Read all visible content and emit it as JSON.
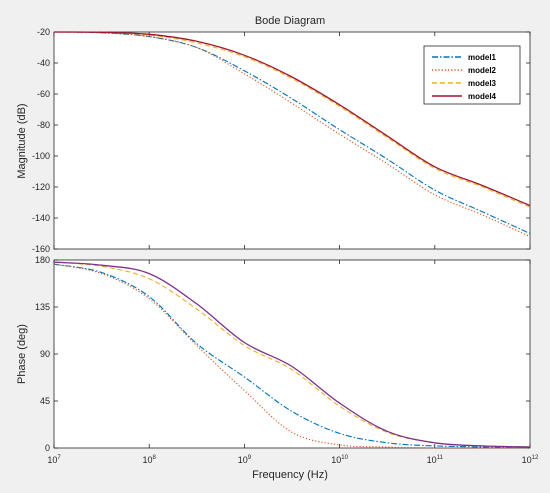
{
  "chart_data": [
    {
      "type": "line",
      "title": "Bode Diagram",
      "xlabel": "Frequency  (Hz)",
      "ylabel": "Magnitude (dB)",
      "x_scale": "log",
      "xlim": [
        10000000,
        1000000000000
      ],
      "ylim": [
        -160,
        -20
      ],
      "yticks": [
        "-20",
        "-40",
        "-60",
        "-80",
        "-100",
        "-120",
        "-140",
        "-160"
      ],
      "grid": false,
      "legend": "top-right",
      "x": [
        10000000,
        31600000,
        100000000,
        316000000,
        1000000000,
        3160000000,
        10000000000,
        31600000000,
        100000000000,
        316000000000,
        1000000000000
      ],
      "series": [
        {
          "name": "model1",
          "color": "#0072BD",
          "dash": "dashdot",
          "values": [
            -20,
            -20.5,
            -23,
            -30,
            -45,
            -63,
            -83,
            -102,
            -122,
            -136,
            -150
          ]
        },
        {
          "name": "model2",
          "color": "#D95319",
          "dash": "dotted",
          "values": [
            -20,
            -20.5,
            -23,
            -30,
            -47,
            -66,
            -86,
            -105,
            -125,
            -138,
            -152
          ]
        },
        {
          "name": "model3",
          "color": "#EDB120",
          "dash": "dashed",
          "values": [
            -20,
            -20.2,
            -22,
            -27,
            -36,
            -50,
            -68,
            -88,
            -108,
            -120,
            -133
          ]
        },
        {
          "name": "model4",
          "color": "#A2142F",
          "dash": "solid",
          "values": [
            -20,
            -20.2,
            -21.5,
            -26,
            -35,
            -49,
            -67,
            -87,
            -107,
            -119,
            -132
          ]
        }
      ]
    },
    {
      "type": "line",
      "xlabel": "Frequency  (Hz)",
      "ylabel": "Phase (deg)",
      "x_scale": "log",
      "xlim": [
        10000000,
        1000000000000
      ],
      "ylim": [
        0,
        180
      ],
      "yticks": [
        "0",
        "45",
        "90",
        "135",
        "180"
      ],
      "xticks_base": "10",
      "xticks_exp": [
        "7",
        "8",
        "9",
        "10",
        "11",
        "12"
      ],
      "grid": false,
      "x": [
        10000000,
        31600000,
        100000000,
        316000000,
        1000000000,
        3160000000,
        10000000000,
        31600000000,
        100000000000,
        316000000000,
        1000000000000
      ],
      "series": [
        {
          "name": "model1",
          "color": "#0072BD",
          "dash": "dashdot",
          "values": [
            176,
            168,
            145,
            100,
            68,
            35,
            14,
            5,
            2,
            1,
            0
          ]
        },
        {
          "name": "model2",
          "color": "#D95319",
          "dash": "dotted",
          "values": [
            176,
            167,
            143,
            98,
            55,
            15,
            3,
            1,
            0,
            0,
            0
          ]
        },
        {
          "name": "model3",
          "color": "#EDB120",
          "dash": "dashed",
          "values": [
            178,
            174,
            162,
            133,
            98,
            75,
            40,
            15,
            5,
            2,
            1
          ]
        },
        {
          "name": "model4",
          "color": "#7E2F8E",
          "dash": "solid",
          "values": [
            178,
            175,
            167,
            138,
            101,
            78,
            43,
            16,
            5,
            2,
            1
          ]
        }
      ]
    }
  ]
}
